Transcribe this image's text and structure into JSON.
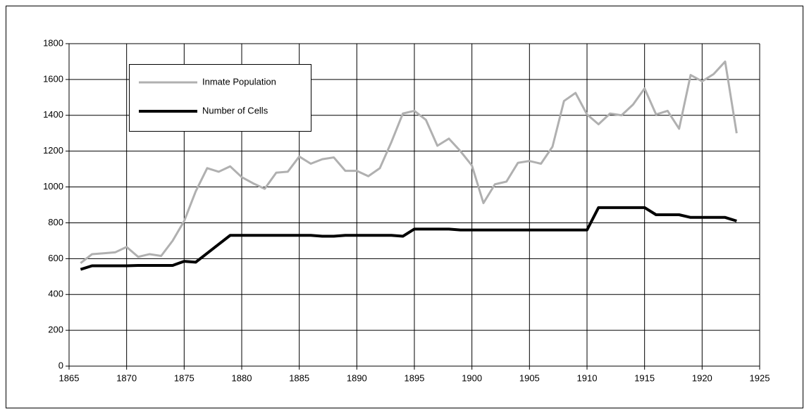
{
  "chart_data": {
    "type": "line",
    "x": [
      1866,
      1867,
      1868,
      1869,
      1870,
      1871,
      1872,
      1873,
      1874,
      1875,
      1876,
      1877,
      1878,
      1879,
      1880,
      1881,
      1882,
      1883,
      1884,
      1885,
      1886,
      1887,
      1888,
      1889,
      1890,
      1891,
      1892,
      1893,
      1894,
      1895,
      1896,
      1897,
      1898,
      1899,
      1900,
      1901,
      1902,
      1903,
      1904,
      1905,
      1906,
      1907,
      1908,
      1909,
      1910,
      1911,
      1912,
      1913,
      1914,
      1915,
      1916,
      1917,
      1918,
      1919,
      1920,
      1921,
      1922,
      1923
    ],
    "series": [
      {
        "name": "Inmate Population",
        "color": "#b0b0b0",
        "values": [
          575,
          625,
          630,
          635,
          665,
          610,
          625,
          615,
          700,
          810,
          975,
          1105,
          1085,
          1115,
          1055,
          1020,
          990,
          1080,
          1085,
          1170,
          1130,
          1155,
          1165,
          1090,
          1090,
          1060,
          1105,
          1250,
          1410,
          1425,
          1375,
          1230,
          1270,
          1200,
          1120,
          910,
          1015,
          1030,
          1135,
          1145,
          1130,
          1225,
          1480,
          1525,
          1405,
          1350,
          1410,
          1400,
          1460,
          1550,
          1405,
          1425,
          1325,
          1625,
          1590,
          1630,
          1700,
          1300
        ]
      },
      {
        "name": "Number of Cells",
        "color": "#000000",
        "values": [
          540,
          560,
          560,
          560,
          560,
          562,
          562,
          562,
          562,
          585,
          580,
          630,
          680,
          730,
          730,
          730,
          730,
          730,
          730,
          730,
          730,
          725,
          725,
          730,
          730,
          730,
          730,
          730,
          725,
          765,
          765,
          765,
          765,
          760,
          760,
          760,
          760,
          760,
          760,
          760,
          760,
          760,
          760,
          760,
          760,
          885,
          885,
          885,
          885,
          885,
          845,
          845,
          845,
          830,
          830,
          830,
          830,
          810
        ]
      }
    ],
    "xlim": [
      1865,
      1925
    ],
    "xticks": [
      1865,
      1870,
      1875,
      1880,
      1885,
      1890,
      1895,
      1900,
      1905,
      1910,
      1915,
      1920,
      1925
    ],
    "ylim": [
      0,
      1800
    ],
    "yticks": [
      0,
      200,
      400,
      600,
      800,
      1000,
      1200,
      1400,
      1600,
      1800
    ],
    "grid": true,
    "legend": "upper left"
  }
}
